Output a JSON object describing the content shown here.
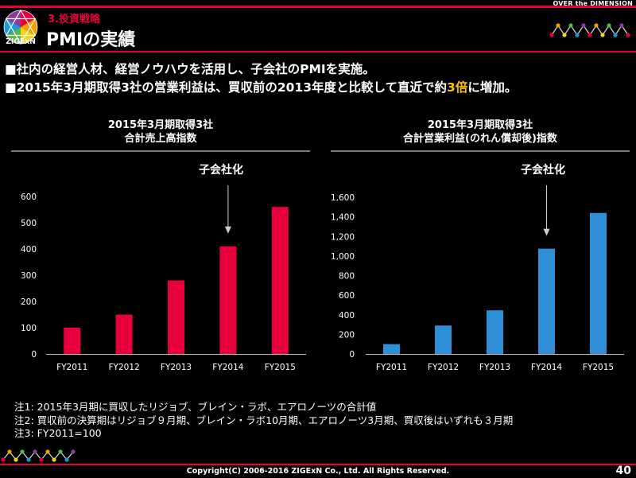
{
  "header": {
    "tagline": "OVER the DIMENSION",
    "logo_text": "ZIGExN",
    "subtitle": "3.投資戦略",
    "title": "PMIの実績"
  },
  "bullets": [
    {
      "prefix": "■社内の経営人材、経営ノウハウを活用し、子会社のPMIを実施。",
      "highlight": "",
      "suffix": ""
    },
    {
      "prefix": "■2015年3月期取得3社の営業利益は、買収前の2013年度と比較して直近で約",
      "highlight": "3倍",
      "suffix": "に増加。"
    }
  ],
  "colors": {
    "accent": "#e8003d",
    "chart1": "#e8003d",
    "chart2": "#2f8fd6",
    "highlight": "#ffc000"
  },
  "chart_data": [
    {
      "type": "bar",
      "title_line1": "2015年3月期取得3社",
      "title_line2": "合計売上高指数",
      "annotation": "子会社化",
      "annotation_category": "FY2014",
      "categories": [
        "FY2011",
        "FY2012",
        "FY2013",
        "FY2014",
        "FY2015"
      ],
      "values": [
        100,
        150,
        280,
        410,
        560
      ],
      "ylim": [
        0,
        600
      ],
      "yticks": [
        0,
        100,
        200,
        300,
        400,
        500,
        600
      ],
      "ytick_labels": [
        "0",
        "100",
        "200",
        "300",
        "400",
        "500",
        "600"
      ],
      "color": "#e8003d"
    },
    {
      "type": "bar",
      "title_line1": "2015年3月期取得3社",
      "title_line2": "合計営業利益(のれん償却後)指数",
      "annotation": "子会社化",
      "annotation_category": "FY2014",
      "categories": [
        "FY2011",
        "FY2012",
        "FY2013",
        "FY2014",
        "FY2015"
      ],
      "values": [
        100,
        290,
        445,
        1075,
        1440
      ],
      "ylim": [
        0,
        1600
      ],
      "yticks": [
        0,
        200,
        400,
        600,
        800,
        1000,
        1200,
        1400,
        1600
      ],
      "ytick_labels": [
        "0",
        "200",
        "400",
        "600",
        "800",
        "1,000",
        "1,200",
        "1,400",
        "1,600"
      ],
      "color": "#2f8fd6"
    }
  ],
  "notes": [
    "注1: 2015年3月期に買収したリジョブ、ブレイン・ラボ、エアロノーツの合計値",
    "注2: 買収前の決算期はリジョブ９月期、ブレイン・ラボ10月期、エアロノーツ3月期、買収後はいずれも３月期",
    "注3: FY2011=100"
  ],
  "footer": {
    "copyright": "Copyright(C) 2006-2016 ZIGExN Co., Ltd. All Rights Reserved.",
    "page_number": "40"
  }
}
